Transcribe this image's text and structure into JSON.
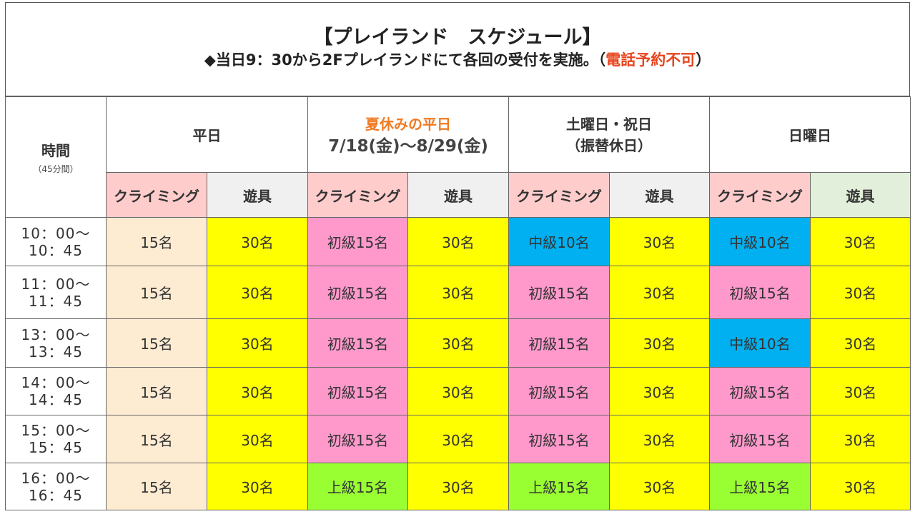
{
  "header": {
    "title": "【プレイランド　スケジュール】",
    "note_main": "◆当日9：30から2Fプレイランドにて各回の受付を実施。（",
    "note_red": "電話予約不可",
    "note_end": "）"
  },
  "columns": {
    "time_label": "時間",
    "time_sub": "（45分間）",
    "weekday": "平日",
    "summer_title": "夏休みの平日",
    "summer_dates": "7/18(金)〜8/29(金)",
    "saturday_line1": "土曜日・祝日",
    "saturday_line2": "（振替休日）",
    "sunday": "日曜日",
    "climbing": "クライミング",
    "play": "遊具"
  },
  "rows": [
    {
      "time1": "10：00〜",
      "time2": "10：45",
      "cells": [
        "15名",
        "30名",
        "初級15名",
        "30名",
        "中級10名",
        "30名",
        "中級10名",
        "30名"
      ]
    },
    {
      "time1": "11：00〜",
      "time2": "11：45",
      "cells": [
        "15名",
        "30名",
        "初級15名",
        "30名",
        "初級15名",
        "30名",
        "初級15名",
        "30名"
      ]
    },
    {
      "time1": "13：00〜",
      "time2": "13：45",
      "cells": [
        "15名",
        "30名",
        "初級15名",
        "30名",
        "初級15名",
        "30名",
        "中級10名",
        "30名"
      ]
    },
    {
      "time1": "14：00〜",
      "time2": "14：45",
      "cells": [
        "15名",
        "30名",
        "初級15名",
        "30名",
        "初級15名",
        "30名",
        "初級15名",
        "30名"
      ]
    },
    {
      "time1": "15：00〜",
      "time2": "15：45",
      "cells": [
        "15名",
        "30名",
        "初級15名",
        "30名",
        "初級15名",
        "30名",
        "初級15名",
        "30名"
      ]
    },
    {
      "time1": "16：00〜",
      "time2": "16：45",
      "cells": [
        "15名",
        "30名",
        "上級15名",
        "30名",
        "上級15名",
        "30名",
        "上級15名",
        "30名"
      ]
    }
  ],
  "colors": {
    "peach": "#fdebd2",
    "yellow": "#ffff00",
    "pink": "#ff99cc",
    "blue": "#00b0f0",
    "green": "#99ff33",
    "red_text": "#e8441c",
    "orange_text": "#f07b22",
    "cyan_text": "#1aabde"
  }
}
